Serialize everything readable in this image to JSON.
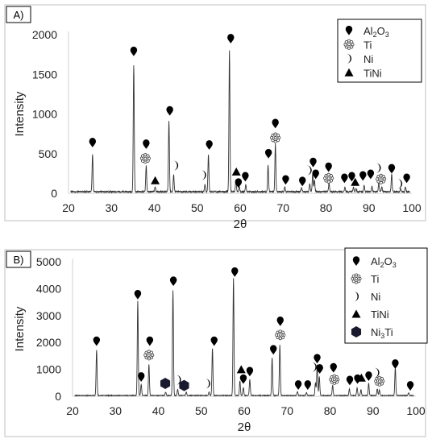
{
  "chart_data": [
    {
      "panel_label": "A)",
      "type": "line",
      "xlabel": "2θ",
      "ylabel": "Intensity",
      "xlim": [
        20,
        100
      ],
      "ylim": [
        0,
        2000
      ],
      "x_ticks": [
        20,
        30,
        40,
        50,
        60,
        70,
        80,
        90,
        100
      ],
      "y_ticks": [
        0,
        500,
        1000,
        1500,
        2000
      ],
      "grid": false,
      "legend_position": "top-right",
      "legend": [
        {
          "marker": "drop",
          "label": "Al",
          "sub1": "2",
          "mid": "O",
          "sub2": "3"
        },
        {
          "marker": "gear",
          "label": "Ti"
        },
        {
          "marker": "crescent",
          "label": "Ni"
        },
        {
          "marker": "triangle",
          "label": "TiNi"
        }
      ],
      "baseline": 20,
      "peaks": [
        {
          "x": 25.6,
          "y": 470,
          "phase": "Al2O3"
        },
        {
          "x": 35.2,
          "y": 1600,
          "phase": "Al2O3"
        },
        {
          "x": 38.1,
          "y": 330,
          "phase": "Ti"
        },
        {
          "x": 40.2,
          "y": 55,
          "phase": "TiNi"
        },
        {
          "x": 43.4,
          "y": 890,
          "phase": "Al2O3"
        },
        {
          "x": 44.5,
          "y": 210,
          "phase": "Ni"
        },
        {
          "x": 51.8,
          "y": 95,
          "phase": "Ni"
        },
        {
          "x": 52.6,
          "y": 470,
          "phase": "Al2O3"
        },
        {
          "x": 57.5,
          "y": 1780,
          "phase": "Al2O3"
        },
        {
          "x": 59.0,
          "y": 150,
          "phase": "TiNi"
        },
        {
          "x": 59.8,
          "y": 60,
          "phase": "Al2O3"
        },
        {
          "x": 61.3,
          "y": 90,
          "phase": "Al2O3"
        },
        {
          "x": 66.5,
          "y": 330,
          "phase": "Al2O3"
        },
        {
          "x": 68.2,
          "y": 600,
          "phase": "Ti"
        },
        {
          "x": 70.4,
          "y": 60,
          "phase": "Al2O3"
        },
        {
          "x": 74.3,
          "y": 50,
          "phase": "Al2O3"
        },
        {
          "x": 76.2,
          "y": 100,
          "phase": "Ni"
        },
        {
          "x": 76.9,
          "y": 240,
          "phase": "Al2O3"
        },
        {
          "x": 77.3,
          "y": 150,
          "phase": "Al2O3"
        },
        {
          "x": 80.7,
          "y": 110,
          "phase": "Ti"
        },
        {
          "x": 84.4,
          "y": 60,
          "phase": "Al2O3"
        },
        {
          "x": 86.4,
          "y": 60,
          "phase": "Al2O3"
        },
        {
          "x": 87.0,
          "y": 45,
          "phase": "TiNi"
        },
        {
          "x": 88.9,
          "y": 80,
          "phase": "Al2O3"
        },
        {
          "x": 90.7,
          "y": 70,
          "phase": "Al2O3"
        },
        {
          "x": 92.3,
          "y": 110,
          "phase": "Ni"
        },
        {
          "x": 93.0,
          "y": 60,
          "phase": "Ti"
        },
        {
          "x": 95.3,
          "y": 220,
          "phase": "Al2O3"
        },
        {
          "x": 97.4,
          "y": 40,
          "phase": "Ni"
        },
        {
          "x": 98.5,
          "y": 60,
          "phase": "Al2O3"
        }
      ],
      "markers": [
        {
          "type": "drop",
          "x": 25.6,
          "y": 640
        },
        {
          "type": "drop",
          "x": 35.2,
          "y": 1790
        },
        {
          "type": "drop",
          "x": 38.1,
          "y": 620
        },
        {
          "type": "gear",
          "x": 37.9,
          "y": 440
        },
        {
          "type": "triangle",
          "x": 40.2,
          "y": 160
        },
        {
          "type": "drop",
          "x": 43.6,
          "y": 1040
        },
        {
          "type": "crescent",
          "x": 45.0,
          "y": 350
        },
        {
          "type": "crescent",
          "x": 51.5,
          "y": 230
        },
        {
          "type": "drop",
          "x": 52.8,
          "y": 610
        },
        {
          "type": "drop",
          "x": 57.8,
          "y": 1950
        },
        {
          "type": "triangle",
          "x": 59.1,
          "y": 270
        },
        {
          "type": "drop",
          "x": 59.6,
          "y": 130
        },
        {
          "type": "drop",
          "x": 61.2,
          "y": 210
        },
        {
          "type": "drop",
          "x": 66.6,
          "y": 500
        },
        {
          "type": "drop",
          "x": 68.2,
          "y": 880
        },
        {
          "type": "gear",
          "x": 68.2,
          "y": 700
        },
        {
          "type": "drop",
          "x": 70.6,
          "y": 170
        },
        {
          "type": "drop",
          "x": 74.5,
          "y": 150
        },
        {
          "type": "crescent",
          "x": 76.1,
          "y": 290
        },
        {
          "type": "drop",
          "x": 77.0,
          "y": 390
        },
        {
          "type": "drop",
          "x": 77.6,
          "y": 240
        },
        {
          "type": "drop",
          "x": 80.6,
          "y": 330
        },
        {
          "type": "gear",
          "x": 80.6,
          "y": 190
        },
        {
          "type": "drop",
          "x": 84.3,
          "y": 190
        },
        {
          "type": "drop",
          "x": 86.0,
          "y": 210
        },
        {
          "type": "triangle",
          "x": 86.8,
          "y": 140
        },
        {
          "type": "drop",
          "x": 88.6,
          "y": 220
        },
        {
          "type": "drop",
          "x": 90.4,
          "y": 240
        },
        {
          "type": "crescent",
          "x": 92.2,
          "y": 320
        },
        {
          "type": "gear",
          "x": 92.8,
          "y": 180
        },
        {
          "type": "drop",
          "x": 95.3,
          "y": 310
        },
        {
          "type": "crescent",
          "x": 97.2,
          "y": 120
        },
        {
          "type": "drop",
          "x": 98.8,
          "y": 190
        }
      ]
    },
    {
      "panel_label": "B)",
      "type": "line",
      "xlabel": "2θ",
      "ylabel": "Intensity",
      "xlim": [
        20,
        100
      ],
      "ylim": [
        0,
        5000
      ],
      "x_ticks": [
        20,
        30,
        40,
        50,
        60,
        70,
        80,
        90,
        100
      ],
      "y_ticks": [
        0,
        1000,
        2000,
        3000,
        4000,
        5000
      ],
      "grid": false,
      "legend_position": "top-right",
      "legend": [
        {
          "marker": "drop",
          "label": "Al",
          "sub1": "2",
          "mid": "O",
          "sub2": "3"
        },
        {
          "marker": "gear",
          "label": "Ti"
        },
        {
          "marker": "crescent",
          "label": "Ni"
        },
        {
          "marker": "triangle",
          "label": "TiNi"
        },
        {
          "marker": "hexagon",
          "label": "Ni",
          "sub1": "3",
          "mid": "Ti",
          "sub2": ""
        }
      ],
      "baseline": 30,
      "peaks": [
        {
          "x": 25.6,
          "y": 1700,
          "phase": "Al2O3"
        },
        {
          "x": 35.2,
          "y": 3500,
          "phase": "Al2O3"
        },
        {
          "x": 36.0,
          "y": 420,
          "phase": "Al2O3"
        },
        {
          "x": 37.8,
          "y": 1160,
          "phase": "Ti"
        },
        {
          "x": 41.7,
          "y": 130,
          "phase": "Ni3Ti"
        },
        {
          "x": 43.4,
          "y": 3900,
          "phase": "Al2O3"
        },
        {
          "x": 44.5,
          "y": 230,
          "phase": "Ni"
        },
        {
          "x": 46.5,
          "y": 130,
          "phase": "Ni3Ti"
        },
        {
          "x": 51.8,
          "y": 120,
          "phase": "Ni"
        },
        {
          "x": 52.6,
          "y": 1750,
          "phase": "Al2O3"
        },
        {
          "x": 57.5,
          "y": 4350,
          "phase": "Al2O3"
        },
        {
          "x": 59.0,
          "y": 550,
          "phase": "TiNi"
        },
        {
          "x": 59.8,
          "y": 300,
          "phase": "Al2O3"
        },
        {
          "x": 61.3,
          "y": 600,
          "phase": "Al2O3"
        },
        {
          "x": 66.5,
          "y": 1400,
          "phase": "Al2O3"
        },
        {
          "x": 68.3,
          "y": 1870,
          "phase": "Ti"
        },
        {
          "x": 72.4,
          "y": 150,
          "phase": "Al2O3"
        },
        {
          "x": 74.5,
          "y": 120,
          "phase": "Al2O3"
        },
        {
          "x": 76.6,
          "y": 480,
          "phase": "Ni"
        },
        {
          "x": 77.0,
          "y": 1150,
          "phase": "Al2O3"
        },
        {
          "x": 77.5,
          "y": 700,
          "phase": "Al2O3"
        },
        {
          "x": 80.6,
          "y": 380,
          "phase": "Ti"
        },
        {
          "x": 84.5,
          "y": 250,
          "phase": "Al2O3"
        },
        {
          "x": 86.3,
          "y": 280,
          "phase": "Al2O3"
        },
        {
          "x": 87.2,
          "y": 220,
          "phase": "TiNi"
        },
        {
          "x": 89.0,
          "y": 450,
          "phase": "Al2O3"
        },
        {
          "x": 91.0,
          "y": 250,
          "phase": "Ni"
        },
        {
          "x": 91.5,
          "y": 200,
          "phase": "Ti"
        },
        {
          "x": 95.2,
          "y": 1050,
          "phase": "Al2O3"
        },
        {
          "x": 98.3,
          "y": 100,
          "phase": "Al2O3"
        }
      ],
      "markers": [
        {
          "type": "drop",
          "x": 25.6,
          "y": 2050
        },
        {
          "type": "drop",
          "x": 35.2,
          "y": 3780
        },
        {
          "type": "drop",
          "x": 36.0,
          "y": 720
        },
        {
          "type": "drop",
          "x": 38.0,
          "y": 2050
        },
        {
          "type": "gear",
          "x": 37.8,
          "y": 1530
        },
        {
          "type": "hexagon",
          "x": 41.6,
          "y": 480
        },
        {
          "type": "drop",
          "x": 43.5,
          "y": 4280
        },
        {
          "type": "crescent",
          "x": 44.7,
          "y": 610
        },
        {
          "type": "hexagon",
          "x": 46.0,
          "y": 400
        },
        {
          "type": "crescent",
          "x": 51.5,
          "y": 470
        },
        {
          "type": "drop",
          "x": 53.0,
          "y": 2050
        },
        {
          "type": "drop",
          "x": 57.8,
          "y": 4620
        },
        {
          "type": "triangle",
          "x": 59.3,
          "y": 990
        },
        {
          "type": "drop",
          "x": 59.8,
          "y": 640
        },
        {
          "type": "drop",
          "x": 61.3,
          "y": 920
        },
        {
          "type": "drop",
          "x": 66.8,
          "y": 1730
        },
        {
          "type": "drop",
          "x": 68.4,
          "y": 2790
        },
        {
          "type": "gear",
          "x": 68.4,
          "y": 2280
        },
        {
          "type": "drop",
          "x": 72.6,
          "y": 420
        },
        {
          "type": "drop",
          "x": 74.8,
          "y": 420
        },
        {
          "type": "crescent",
          "x": 76.3,
          "y": 1090
        },
        {
          "type": "drop",
          "x": 77.0,
          "y": 1400
        },
        {
          "type": "drop",
          "x": 77.6,
          "y": 1020
        },
        {
          "type": "drop",
          "x": 80.8,
          "y": 1060
        },
        {
          "type": "gear",
          "x": 81.0,
          "y": 620
        },
        {
          "type": "drop",
          "x": 84.6,
          "y": 590
        },
        {
          "type": "drop",
          "x": 86.4,
          "y": 640
        },
        {
          "type": "triangle",
          "x": 87.3,
          "y": 680
        },
        {
          "type": "drop",
          "x": 89.0,
          "y": 750
        },
        {
          "type": "crescent",
          "x": 90.9,
          "y": 880
        },
        {
          "type": "gear",
          "x": 91.5,
          "y": 560
        },
        {
          "type": "drop",
          "x": 95.2,
          "y": 1200
        },
        {
          "type": "drop",
          "x": 98.7,
          "y": 390
        }
      ]
    }
  ]
}
